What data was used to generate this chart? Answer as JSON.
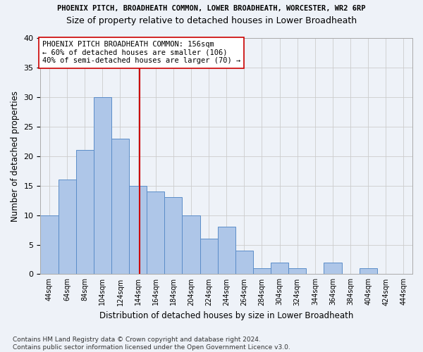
{
  "title": "PHOENIX PITCH, BROADHEATH COMMON, LOWER BROADHEATH, WORCESTER, WR2 6RP",
  "subtitle": "Size of property relative to detached houses in Lower Broadheath",
  "xlabel": "Distribution of detached houses by size in Lower Broadheath",
  "ylabel": "Number of detached properties",
  "bar_values": [
    10,
    16,
    21,
    30,
    23,
    15,
    14,
    13,
    10,
    6,
    8,
    4,
    1,
    2,
    1,
    0,
    2,
    0,
    1
  ],
  "bin_labels": [
    "44sqm",
    "64sqm",
    "84sqm",
    "104sqm",
    "124sqm",
    "144sqm",
    "164sqm",
    "184sqm",
    "204sqm",
    "224sqm",
    "244sqm",
    "264sqm",
    "284sqm",
    "304sqm",
    "324sqm",
    "344sqm",
    "364sqm",
    "384sqm",
    "404sqm",
    "424sqm",
    "444sqm"
  ],
  "bin_left_edges": [
    44,
    64,
    84,
    104,
    124,
    144,
    164,
    184,
    204,
    224,
    244,
    264,
    284,
    304,
    324,
    344,
    364,
    384,
    404,
    424,
    444
  ],
  "bar_color": "#aec6e8",
  "bar_edgecolor": "#5b8dc8",
  "vline_x": 156,
  "vline_color": "#cc0000",
  "annotation_text": "PHOENIX PITCH BROADHEATH COMMON: 156sqm\n← 60% of detached houses are smaller (106)\n40% of semi-detached houses are larger (70) →",
  "annotation_box_edgecolor": "#cc0000",
  "annotation_box_facecolor": "#ffffff",
  "ylim": [
    0,
    40
  ],
  "yticks": [
    0,
    5,
    10,
    15,
    20,
    25,
    30,
    35,
    40
  ],
  "grid_color": "#cccccc",
  "background_color": "#eef2f8",
  "footnote": "Contains HM Land Registry data © Crown copyright and database right 2024.\nContains public sector information licensed under the Open Government Licence v3.0.",
  "title_fontsize": 7.5,
  "subtitle_fontsize": 9,
  "xlabel_fontsize": 8.5,
  "ylabel_fontsize": 8.5,
  "annotation_fontsize": 7.5,
  "footnote_fontsize": 6.5
}
